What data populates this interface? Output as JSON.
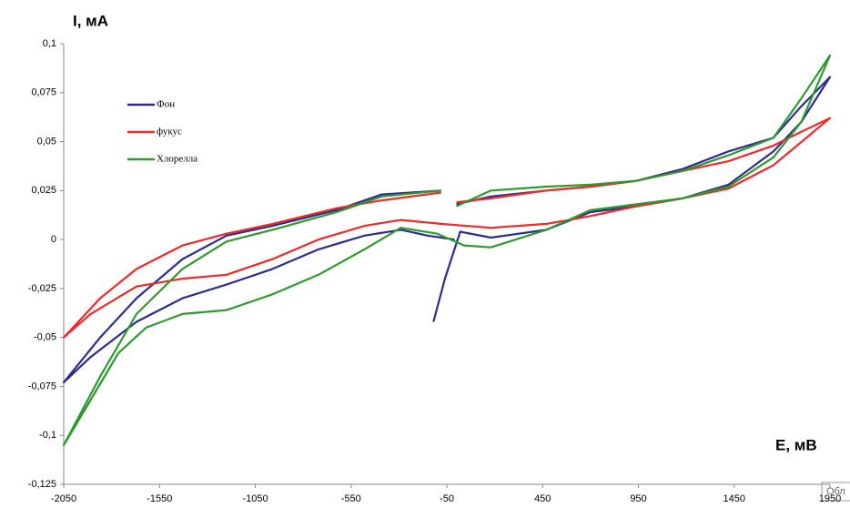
{
  "chart_data": {
    "type": "line",
    "ylabel": "I, мА",
    "xlabel": "E, мВ",
    "annotation": "Обл",
    "xlim": [
      -2050,
      1950
    ],
    "xticks": [
      -2050,
      -1550,
      -1050,
      -550,
      -50,
      450,
      950,
      1450,
      1950
    ],
    "ylim": [
      -0.125,
      0.1
    ],
    "yticks": [
      {
        "value": -0.125,
        "label": "-0,125"
      },
      {
        "value": -0.1,
        "label": "-0,1"
      },
      {
        "value": -0.075,
        "label": "-0,075"
      },
      {
        "value": -0.05,
        "label": "-0,05"
      },
      {
        "value": -0.025,
        "label": "-0,025"
      },
      0,
      {
        "value": 0.025,
        "label": "0,025"
      },
      {
        "value": 0.05,
        "label": "0,05"
      },
      {
        "value": 0.075,
        "label": "0,075"
      },
      {
        "value": 0.1,
        "label": "0,1"
      }
    ],
    "grid": false,
    "series": [
      {
        "name": "Фон",
        "color": "#2b2e8f",
        "x": [
          -120,
          -60,
          20,
          180,
          470,
          700,
          940,
          1180,
          1420,
          1655,
          1800,
          1950,
          1800,
          1655,
          1420,
          1180,
          940,
          700,
          470,
          180,
          0,
          -50,
          -80,
          -390,
          -625,
          -960,
          -1200,
          -1430,
          -1670,
          -1860,
          -2050,
          -1910,
          -1670,
          -1430,
          -1200,
          -960,
          -720,
          -480,
          -290,
          -150,
          -10
        ],
        "values": [
          -0.042,
          -0.02,
          0.004,
          0.001,
          0.005,
          0.014,
          0.017,
          0.021,
          0.028,
          0.045,
          0.06,
          0.083,
          0.068,
          0.052,
          0.045,
          0.036,
          0.03,
          0.027,
          0.025,
          0.022,
          0.018,
          null,
          0.025,
          0.023,
          0.015,
          0.007,
          0.002,
          -0.01,
          -0.03,
          -0.05,
          -0.073,
          -0.06,
          -0.042,
          -0.03,
          -0.023,
          -0.015,
          -0.005,
          0.002,
          0.005,
          0.002,
          0.0
        ]
      },
      {
        "name": "фукус",
        "color": "#f02a2a",
        "x": [
          -80,
          -390,
          -625,
          -960,
          -1200,
          -1430,
          -1670,
          -1860,
          -2050,
          -1910,
          -1670,
          -1430,
          -1200,
          -960,
          -720,
          -480,
          -290,
          -80,
          180,
          470,
          700,
          940,
          1180,
          1420,
          1655,
          1950,
          1800,
          1655,
          1420,
          1180,
          940,
          700,
          470,
          180,
          0
        ],
        "values": [
          0.024,
          0.02,
          0.016,
          0.008,
          0.003,
          -0.003,
          -0.015,
          -0.03,
          -0.05,
          -0.038,
          -0.024,
          -0.02,
          -0.018,
          -0.01,
          0.0,
          0.007,
          0.01,
          0.008,
          0.006,
          0.008,
          0.012,
          0.017,
          0.021,
          0.026,
          0.038,
          0.062,
          0.055,
          0.048,
          0.04,
          0.035,
          0.03,
          0.027,
          0.025,
          0.021,
          0.019
        ]
      },
      {
        "name": "Хлорелла",
        "color": "#2e9a2e",
        "x": [
          -80,
          -390,
          -625,
          -960,
          -1200,
          -1430,
          -1670,
          -1860,
          -2050,
          -1910,
          -1765,
          -1620,
          -1430,
          -1200,
          -960,
          -720,
          -480,
          -290,
          -100,
          40,
          180,
          470,
          700,
          940,
          1180,
          1420,
          1655,
          1800,
          1950,
          1800,
          1655,
          1420,
          1180,
          940,
          700,
          470,
          180,
          0
        ],
        "values": [
          0.025,
          0.022,
          0.014,
          0.005,
          -0.001,
          -0.015,
          -0.038,
          -0.07,
          -0.105,
          -0.082,
          -0.058,
          -0.045,
          -0.038,
          -0.036,
          -0.028,
          -0.018,
          -0.005,
          0.006,
          0.003,
          -0.003,
          -0.004,
          0.005,
          0.015,
          0.018,
          0.021,
          0.027,
          0.042,
          0.06,
          0.094,
          0.072,
          0.052,
          0.043,
          0.035,
          0.03,
          0.028,
          0.027,
          0.025,
          0.017
        ]
      }
    ]
  }
}
